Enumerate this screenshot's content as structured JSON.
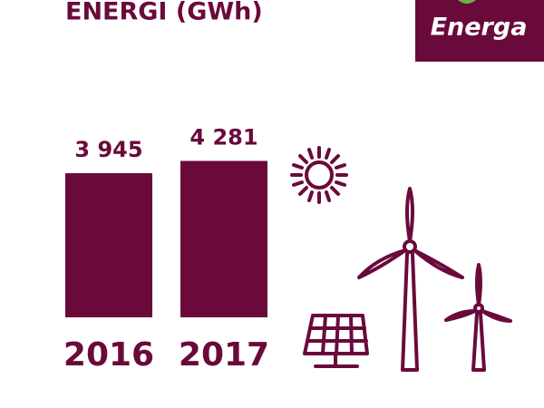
{
  "logo": "Energa",
  "chart_data": {
    "type": "bar",
    "title": "ENERGI (GWh)",
    "categories": [
      "2016",
      "2017"
    ],
    "values": [
      3945,
      4281
    ],
    "value_labels": [
      "3 945",
      "4 281"
    ],
    "color": "#6a0a3b",
    "ylim": [
      0,
      5000
    ]
  }
}
